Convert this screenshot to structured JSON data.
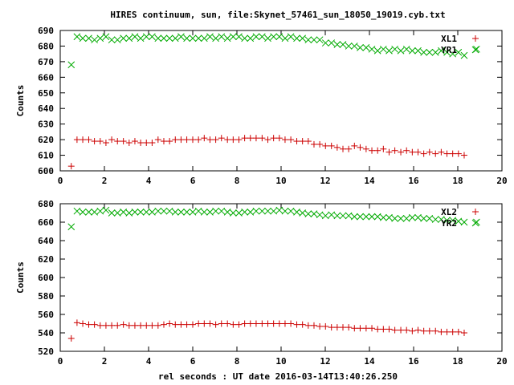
{
  "title": "HIRES continuum, sun, file:Skynet_57461_sun_18050_19019.cyb.txt",
  "xlabel": "rel seconds : UT date 2016-03-14T13:40:26.250",
  "colors": {
    "red": "#cc0000",
    "green": "#00aa00"
  },
  "chart_data": [
    {
      "type": "scatter",
      "ylabel": "Counts",
      "xlim": [
        0,
        20
      ],
      "ylim": [
        600,
        690
      ],
      "xticks": [
        0,
        2,
        4,
        6,
        8,
        10,
        12,
        14,
        16,
        18,
        20
      ],
      "yticks": [
        600,
        610,
        620,
        630,
        640,
        650,
        660,
        670,
        680,
        690
      ],
      "legend_position": "top-right",
      "series": [
        {
          "name": "XL1",
          "marker": "plus",
          "color": "#cc0000",
          "x": [
            0.5,
            0.76,
            1.02,
            1.29,
            1.55,
            1.81,
            2.07,
            2.33,
            2.59,
            2.86,
            3.12,
            3.38,
            3.64,
            3.9,
            4.16,
            4.43,
            4.69,
            4.95,
            5.21,
            5.47,
            5.73,
            6.0,
            6.26,
            6.52,
            6.78,
            7.04,
            7.3,
            7.57,
            7.83,
            8.09,
            8.35,
            8.61,
            8.87,
            9.14,
            9.4,
            9.66,
            9.92,
            10.18,
            10.44,
            10.71,
            10.97,
            11.23,
            11.49,
            11.75,
            12.01,
            12.28,
            12.54,
            12.8,
            13.06,
            13.32,
            13.58,
            13.85,
            14.11,
            14.37,
            14.63,
            14.89,
            15.15,
            15.42,
            15.68,
            15.94,
            16.2,
            16.46,
            16.72,
            16.99,
            17.25,
            17.51,
            17.77,
            18.03,
            18.29
          ],
          "y": [
            603,
            620,
            620,
            620,
            619,
            619,
            618,
            620,
            619,
            619,
            618,
            619,
            618,
            618,
            618,
            620,
            619,
            619,
            620,
            620,
            620,
            620,
            620,
            621,
            620,
            620,
            621,
            620,
            620,
            620,
            621,
            621,
            621,
            621,
            620,
            621,
            621,
            620,
            620,
            619,
            619,
            619,
            617,
            617,
            616,
            616,
            615,
            614,
            614,
            616,
            615,
            614,
            613,
            613,
            614,
            612,
            613,
            612,
            613,
            612,
            612,
            611,
            612,
            611,
            612,
            611,
            611,
            611,
            610
          ]
        },
        {
          "name": "YR1",
          "marker": "cross",
          "color": "#00aa00",
          "x": [
            0.5,
            0.76,
            1.02,
            1.29,
            1.55,
            1.81,
            2.07,
            2.33,
            2.59,
            2.86,
            3.12,
            3.38,
            3.64,
            3.9,
            4.16,
            4.43,
            4.69,
            4.95,
            5.21,
            5.47,
            5.73,
            6.0,
            6.26,
            6.52,
            6.78,
            7.04,
            7.3,
            7.57,
            7.83,
            8.09,
            8.35,
            8.61,
            8.87,
            9.14,
            9.4,
            9.66,
            9.92,
            10.18,
            10.44,
            10.71,
            10.97,
            11.23,
            11.49,
            11.75,
            12.01,
            12.28,
            12.54,
            12.8,
            13.06,
            13.32,
            13.58,
            13.85,
            14.11,
            14.37,
            14.63,
            14.89,
            15.15,
            15.42,
            15.68,
            15.94,
            16.2,
            16.46,
            16.72,
            16.99,
            17.25,
            17.51,
            17.77,
            18.03,
            18.29
          ],
          "y": [
            668,
            686,
            685,
            685,
            684,
            685,
            686,
            684,
            684,
            685,
            685,
            686,
            685,
            686,
            686,
            685,
            685,
            685,
            685,
            686,
            685,
            685,
            685,
            685,
            686,
            685,
            686,
            685,
            686,
            686,
            685,
            685,
            686,
            686,
            685,
            686,
            686,
            685,
            686,
            685,
            685,
            684,
            684,
            684,
            682,
            682,
            681,
            681,
            680,
            680,
            679,
            679,
            678,
            677,
            678,
            677,
            678,
            677,
            678,
            677,
            677,
            676,
            676,
            676,
            677,
            676,
            675,
            676,
            674
          ]
        }
      ]
    },
    {
      "type": "scatter",
      "ylabel": "Counts",
      "xlim": [
        0,
        20
      ],
      "ylim": [
        520,
        680
      ],
      "xticks": [
        0,
        2,
        4,
        6,
        8,
        10,
        12,
        14,
        16,
        18,
        20
      ],
      "yticks": [
        520,
        540,
        560,
        580,
        600,
        620,
        640,
        660,
        680
      ],
      "legend_position": "top-right",
      "series": [
        {
          "name": "XL2",
          "marker": "plus",
          "color": "#cc0000",
          "x": [
            0.5,
            0.76,
            1.02,
            1.29,
            1.55,
            1.81,
            2.07,
            2.33,
            2.59,
            2.86,
            3.12,
            3.38,
            3.64,
            3.9,
            4.16,
            4.43,
            4.69,
            4.95,
            5.21,
            5.47,
            5.73,
            6.0,
            6.26,
            6.52,
            6.78,
            7.04,
            7.3,
            7.57,
            7.83,
            8.09,
            8.35,
            8.61,
            8.87,
            9.14,
            9.4,
            9.66,
            9.92,
            10.18,
            10.44,
            10.71,
            10.97,
            11.23,
            11.49,
            11.75,
            12.01,
            12.28,
            12.54,
            12.8,
            13.06,
            13.32,
            13.58,
            13.85,
            14.11,
            14.37,
            14.63,
            14.89,
            15.15,
            15.42,
            15.68,
            15.94,
            16.2,
            16.46,
            16.72,
            16.99,
            17.25,
            17.51,
            17.77,
            18.03,
            18.29
          ],
          "y": [
            534,
            551,
            550,
            549,
            549,
            548,
            548,
            548,
            548,
            549,
            548,
            548,
            548,
            548,
            548,
            548,
            549,
            550,
            549,
            549,
            549,
            549,
            550,
            550,
            550,
            549,
            550,
            550,
            549,
            549,
            550,
            550,
            550,
            550,
            550,
            550,
            550,
            550,
            550,
            549,
            549,
            548,
            548,
            547,
            547,
            546,
            546,
            546,
            546,
            545,
            545,
            545,
            545,
            544,
            544,
            544,
            543,
            543,
            543,
            542,
            543,
            542,
            542,
            542,
            541,
            541,
            541,
            541,
            540
          ]
        },
        {
          "name": "YR2",
          "marker": "cross",
          "color": "#00aa00",
          "x": [
            0.5,
            0.76,
            1.02,
            1.29,
            1.55,
            1.81,
            2.07,
            2.33,
            2.59,
            2.86,
            3.12,
            3.38,
            3.64,
            3.9,
            4.16,
            4.43,
            4.69,
            4.95,
            5.21,
            5.47,
            5.73,
            6.0,
            6.26,
            6.52,
            6.78,
            7.04,
            7.3,
            7.57,
            7.83,
            8.09,
            8.35,
            8.61,
            8.87,
            9.14,
            9.4,
            9.66,
            9.92,
            10.18,
            10.44,
            10.71,
            10.97,
            11.23,
            11.49,
            11.75,
            12.01,
            12.28,
            12.54,
            12.8,
            13.06,
            13.32,
            13.58,
            13.85,
            14.11,
            14.37,
            14.63,
            14.89,
            15.15,
            15.42,
            15.68,
            15.94,
            16.2,
            16.46,
            16.72,
            16.99,
            17.25,
            17.51,
            17.77,
            18.03,
            18.29
          ],
          "y": [
            655,
            672,
            671,
            671,
            671,
            672,
            673,
            670,
            670,
            671,
            670,
            671,
            671,
            671,
            671,
            672,
            672,
            672,
            671,
            671,
            671,
            671,
            672,
            671,
            671,
            672,
            672,
            671,
            670,
            670,
            671,
            671,
            672,
            672,
            672,
            672,
            673,
            672,
            672,
            671,
            670,
            669,
            669,
            668,
            667,
            668,
            667,
            667,
            667,
            666,
            666,
            666,
            666,
            666,
            665,
            665,
            664,
            664,
            664,
            665,
            665,
            664,
            664,
            663,
            663,
            662,
            662,
            661,
            660
          ]
        }
      ]
    }
  ]
}
